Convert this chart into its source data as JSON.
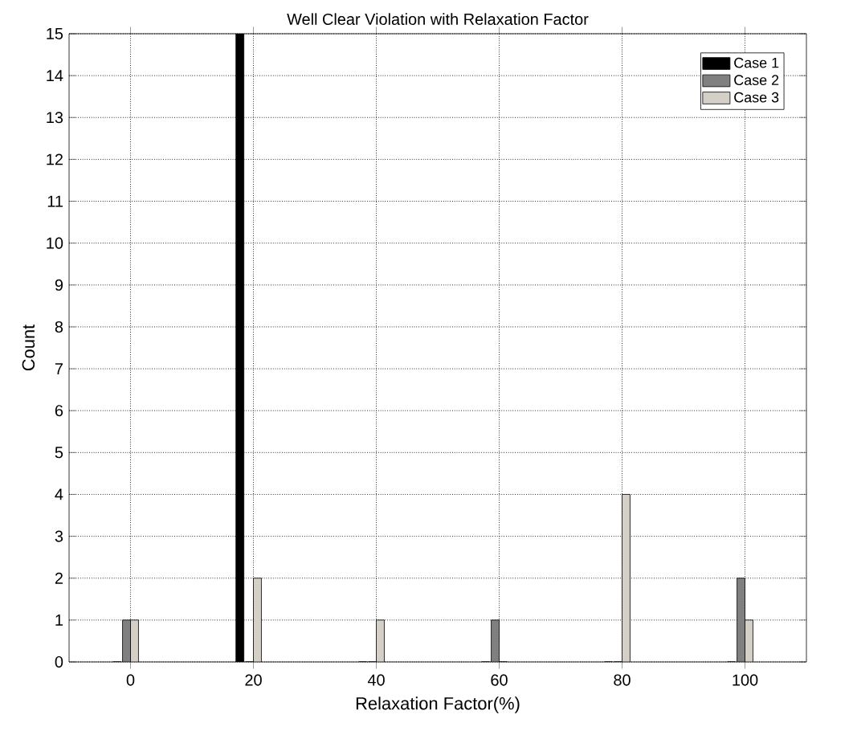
{
  "chart_data": {
    "type": "bar",
    "title": "Well Clear Violation with Relaxation Factor",
    "xlabel": "Relaxation Factor(%)",
    "ylabel": "Count",
    "x": [
      0,
      20,
      40,
      60,
      80,
      100
    ],
    "series": [
      {
        "name": "Case 1",
        "color": "#000000",
        "values": [
          0,
          15,
          0,
          0,
          0,
          0
        ]
      },
      {
        "name": "Case 2",
        "color": "#808080",
        "values": [
          1,
          0,
          0,
          1,
          0,
          2
        ]
      },
      {
        "name": "Case 3",
        "color": "#d4d0c8",
        "values": [
          1,
          2,
          1,
          0,
          4,
          1
        ]
      }
    ],
    "xlim": [
      -10,
      110
    ],
    "ylim": [
      0,
      15
    ],
    "xticks": [
      0,
      20,
      40,
      60,
      80,
      100
    ],
    "yticks": [
      0,
      1,
      2,
      3,
      4,
      5,
      6,
      7,
      8,
      9,
      10,
      11,
      12,
      13,
      14,
      15
    ],
    "grid": true,
    "legend": "top right"
  }
}
